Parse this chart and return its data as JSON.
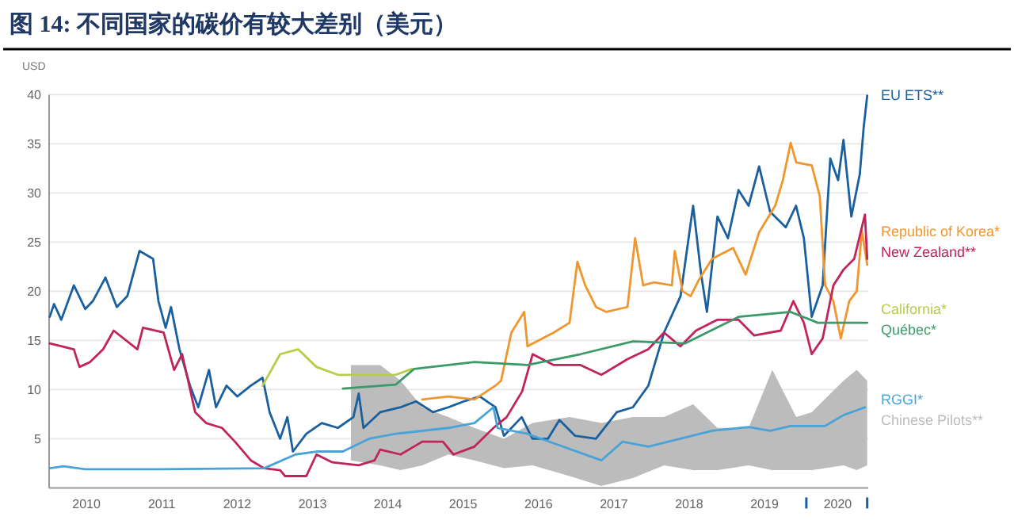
{
  "chart_data": {
    "type": "line",
    "title": "图 14: 不同国家的碳价有较大差别（美元）",
    "ylabel": "USD",
    "xlim": [
      "2010-01-01",
      "2020-11-15"
    ],
    "ylim": [
      0,
      40
    ],
    "yticks": [
      5,
      10,
      15,
      20,
      25,
      30,
      35,
      40
    ],
    "xticks": [
      {
        "value": "2010-07-01",
        "label": "2010"
      },
      {
        "value": "2011-07-01",
        "label": "2011"
      },
      {
        "value": "2012-07-01",
        "label": "2012"
      },
      {
        "value": "2013-07-01",
        "label": "2013"
      },
      {
        "value": "2014-07-01",
        "label": "2014"
      },
      {
        "value": "2015-07-01",
        "label": "2015"
      },
      {
        "value": "2016-07-01",
        "label": "2016"
      },
      {
        "value": "2017-07-01",
        "label": "2017"
      },
      {
        "value": "2018-07-01",
        "label": "2018"
      },
      {
        "value": "2019-07-01",
        "label": "2019"
      },
      {
        "value": "2020-01-20",
        "label": null
      },
      {
        "value": "2020-06-20",
        "label": "2020"
      },
      {
        "value": "2020-11-10",
        "label": null
      }
    ],
    "grid": "y",
    "legend": "right",
    "line_style": "solid",
    "marker": "none",
    "series": [
      {
        "name": "EU ETS**",
        "type": "line",
        "color": "#1a5f9e",
        "x": [
          "2010-01-04",
          "2010-01-25",
          "2010-03",
          "2010-05",
          "2010-06-25",
          "2010-08",
          "2010-10",
          "2010-11-25",
          "2011-01-15",
          "2011-03-15",
          "2011-05-20",
          "2011-06-15",
          "2011-07-20",
          "2011-08-15",
          "2011-09-25",
          "2011-11-15",
          "2011-12-25",
          "2012-02-15",
          "2012-03-20",
          "2012-05-10",
          "2012-07-01",
          "2012-09-05",
          "2012-11-01",
          "2012-12-05",
          "2013-01-25",
          "2013-03-01",
          "2013-03-28",
          "2013-06-01",
          "2013-08-15",
          "2013-11-01",
          "2014-01-15",
          "2014-02-10",
          "2014-03-05",
          "2014-05-25",
          "2014-09-01",
          "2014-11-15",
          "2015-02-05",
          "2015-04-20",
          "2015-07-05",
          "2015-09-20",
          "2015-12-05",
          "2016-01-15",
          "2016-04-10",
          "2016-06-01",
          "2016-08-15",
          "2016-10-10",
          "2016-12-25",
          "2017-04-05",
          "2017-07-15",
          "2017-10-01",
          "2017-12-15",
          "2018-02-05",
          "2018-03-01",
          "2018-05-20",
          "2018-07-20",
          "2018-08-28",
          "2018-09-25",
          "2018-11-15",
          "2019-01-05",
          "2019-02-25",
          "2019-04-15",
          "2019-06-05",
          "2019-07-28",
          "2019-10-12",
          "2019-12-01",
          "2020-01-08",
          "2020-02-15",
          "2020-04-08",
          "2020-05-15",
          "2020-06-22",
          "2020-07-18",
          "2020-08-25",
          "2020-10-05",
          "2020-10-24",
          "2020-11-10"
        ],
        "values": [
          17.4,
          18.7,
          17.1,
          20.6,
          18.2,
          19,
          21.4,
          18.4,
          19.5,
          24.1,
          23.3,
          19,
          16.3,
          18.4,
          14.1,
          10.4,
          8.2,
          12,
          8.2,
          10.4,
          9.3,
          10.4,
          11.2,
          7.7,
          5,
          7.2,
          3.7,
          5.5,
          6.6,
          6.1,
          7.2,
          9.6,
          6.1,
          7.7,
          8.2,
          8.8,
          7.7,
          8.2,
          8.8,
          9.3,
          8.2,
          5.3,
          7.2,
          5,
          5,
          6.9,
          5.3,
          5,
          7.7,
          8.2,
          10.4,
          14.1,
          15.8,
          19.5,
          28.7,
          21.7,
          17.9,
          27.6,
          25.4,
          30.3,
          28.7,
          32.7,
          28.1,
          26.5,
          28.7,
          25.4,
          17.4,
          20.6,
          33.5,
          31.3,
          35.4,
          27.6,
          31.9,
          36.7,
          39.9
        ]
      },
      {
        "name": "Republic of Korea*",
        "type": "line",
        "color": "#f0962e",
        "x": [
          "2014-12-15",
          "2015-04-20",
          "2015-08-25",
          "2015-12-05",
          "2016-01-01",
          "2016-02-20",
          "2016-04-22",
          "2016-05-08",
          "2016-09-12",
          "2016-11-28",
          "2017-01-05",
          "2017-02-12",
          "2017-04-05",
          "2017-05-25",
          "2017-09-05",
          "2017-10-12",
          "2017-11-20",
          "2018-01-10",
          "2018-04-08",
          "2018-04-22",
          "2018-05-30",
          "2018-07-08",
          "2018-08-15",
          "2018-10-20",
          "2019-01-30",
          "2019-04-01",
          "2019-06-05",
          "2019-08-22",
          "2019-09-28",
          "2019-11-05",
          "2019-12-02",
          "2020-02-15",
          "2020-03-25",
          "2020-04-20",
          "2020-05-30",
          "2020-07-05",
          "2020-08-15",
          "2020-09-20",
          "2020-10-15",
          "2020-11-10"
        ],
        "values": [
          9,
          9.3,
          9,
          10.4,
          10.9,
          15.8,
          17.9,
          14.4,
          15.8,
          16.8,
          23,
          20.6,
          18.4,
          17.9,
          18.4,
          25.4,
          20.6,
          20.9,
          20.6,
          24.1,
          20,
          19.5,
          21.1,
          23.3,
          24.4,
          21.7,
          26,
          28.7,
          31.3,
          35.1,
          33.1,
          32.8,
          29.7,
          20.6,
          19,
          15.2,
          19,
          20,
          26.2,
          22.7
        ]
      },
      {
        "name": "New Zealand**",
        "type": "line",
        "color": "#c0245a",
        "x": [
          "2010-01-04",
          "2010-05-01",
          "2010-05-28",
          "2010-07-18",
          "2010-09-20",
          "2010-11-10",
          "2011-03-05",
          "2011-04-01",
          "2011-07-10",
          "2011-08-30",
          "2011-10-08",
          "2011-12-10",
          "2012-02-01",
          "2012-04-18",
          "2012-06-20",
          "2012-09-05",
          "2012-11-08",
          "2013-01-25",
          "2013-02-18",
          "2013-06-01",
          "2013-07-20",
          "2013-10-05",
          "2014-02-10",
          "2014-04-28",
          "2014-05-25",
          "2014-09-01",
          "2014-12-15",
          "2015-03-25",
          "2015-05-15",
          "2015-08-25",
          "2015-11-25",
          "2016-01-28",
          "2016-04-12",
          "2016-06-02",
          "2016-09-12",
          "2017-01-20",
          "2017-05-01",
          "2017-09-05",
          "2017-12-15",
          "2018-03-01",
          "2018-05-20",
          "2018-08-03",
          "2018-11-15",
          "2019-02-25",
          "2019-05-12",
          "2019-09-18",
          "2019-11-18",
          "2020-01-08",
          "2020-02-15",
          "2020-04-08",
          "2020-05-30",
          "2020-07-18",
          "2020-09-08",
          "2020-10-30",
          "2020-11-10"
        ],
        "values": [
          14.7,
          14.1,
          12.3,
          12.8,
          14.1,
          16,
          14.1,
          16.3,
          15.8,
          12,
          13.6,
          7.7,
          6.6,
          6.1,
          4.7,
          2.8,
          2,
          1.8,
          1.2,
          1.2,
          3.4,
          2.6,
          2.3,
          2.8,
          3.9,
          3.4,
          4.7,
          4.7,
          3.4,
          4.2,
          6.1,
          7.2,
          9.8,
          13.6,
          12.5,
          12.5,
          11.5,
          13.1,
          14.1,
          15.8,
          14.4,
          16,
          17.1,
          17.1,
          15.5,
          16,
          19,
          16.8,
          13.6,
          15.2,
          20.6,
          22.2,
          23.3,
          27.8,
          23.3
        ]
      },
      {
        "name": "California*",
        "type": "line",
        "color": "#b8cc4a",
        "x": [
          "2012-11-01",
          "2013-01-25",
          "2013-04-22",
          "2013-07-20",
          "2013-11-01",
          "2014-04-01",
          "2014-08-08",
          "2014-10-25"
        ],
        "values": [
          10.4,
          13.6,
          14.1,
          12.3,
          11.5,
          11.5,
          11.5,
          12.1
        ]
      },
      {
        "name": "Québec*",
        "type": "line",
        "color": "#3c9a6a",
        "x": [
          "2013-11-25",
          "2014-08-08",
          "2014-11-05",
          "2015-08-25",
          "2016-05-08",
          "2017-01-20",
          "2017-10-01",
          "2018-06-12",
          "2019-02-25",
          "2019-11-05",
          "2020-03-15",
          "2020-11-10"
        ],
        "values": [
          10.1,
          10.5,
          12.1,
          12.8,
          12.5,
          13.6,
          14.9,
          14.7,
          17.4,
          17.9,
          16.8,
          16.8
        ]
      },
      {
        "name": "RGGI*",
        "type": "line",
        "color": "#4aa3d8",
        "x": [
          "2010-01-04",
          "2010-03-12",
          "2010-06-25",
          "2011-06-15",
          "2012-11-08",
          "2013-04-10",
          "2013-07-20",
          "2013-11-25",
          "2014-04-01",
          "2014-08-08",
          "2015-04-20",
          "2015-08-25",
          "2015-11-25",
          "2015-12-15",
          "2016-05-08",
          "2017-05-01",
          "2017-08-12",
          "2017-12-15",
          "2018-10-20",
          "2019-04-15",
          "2019-07-28",
          "2019-11-05",
          "2020-04-20",
          "2020-07-18",
          "2020-10-30"
        ],
        "values": [
          2,
          2.2,
          1.9,
          1.9,
          2,
          3.4,
          3.7,
          3.7,
          5,
          5.5,
          6.1,
          6.6,
          8.2,
          6.1,
          5.5,
          2.8,
          4.7,
          4.2,
          5.8,
          6.2,
          5.8,
          6.3,
          6.3,
          7.4,
          8.2
        ]
      },
      {
        "name": "Chinese Pilots**",
        "type": "area",
        "color": "#bcbcbc",
        "x": [
          "2014-01-03",
          "2014-05-25",
          "2014-09-01",
          "2014-12-15",
          "2015-04-20",
          "2015-08-25",
          "2016-01-15",
          "2016-06-02",
          "2016-11-28",
          "2017-05-01",
          "2017-10-01",
          "2018-03-01",
          "2018-07-20",
          "2018-11-15",
          "2019-04-15",
          "2019-08-08",
          "2019-12-02",
          "2020-02-15",
          "2020-07-18",
          "2020-09-20",
          "2020-11-10"
        ],
        "values": [
          null,
          null,
          null,
          null,
          null,
          null,
          null,
          null,
          null,
          null,
          null,
          null,
          null,
          null,
          null,
          null,
          null,
          null,
          null,
          null,
          null
        ],
        "upper": [
          12.5,
          12.5,
          10.9,
          8.2,
          7.2,
          6.1,
          5,
          6.6,
          7.2,
          6.6,
          7.2,
          7.2,
          8.5,
          6.1,
          6.1,
          12,
          7.2,
          7.7,
          10.9,
          12,
          10.9
        ],
        "lower": [
          2.8,
          2.3,
          1.8,
          2.3,
          3.4,
          2.8,
          2,
          2.3,
          1.2,
          0.2,
          1,
          2.3,
          1.8,
          1.8,
          2.3,
          1.8,
          1.8,
          1.8,
          2.3,
          1.8,
          2.3
        ]
      }
    ]
  }
}
